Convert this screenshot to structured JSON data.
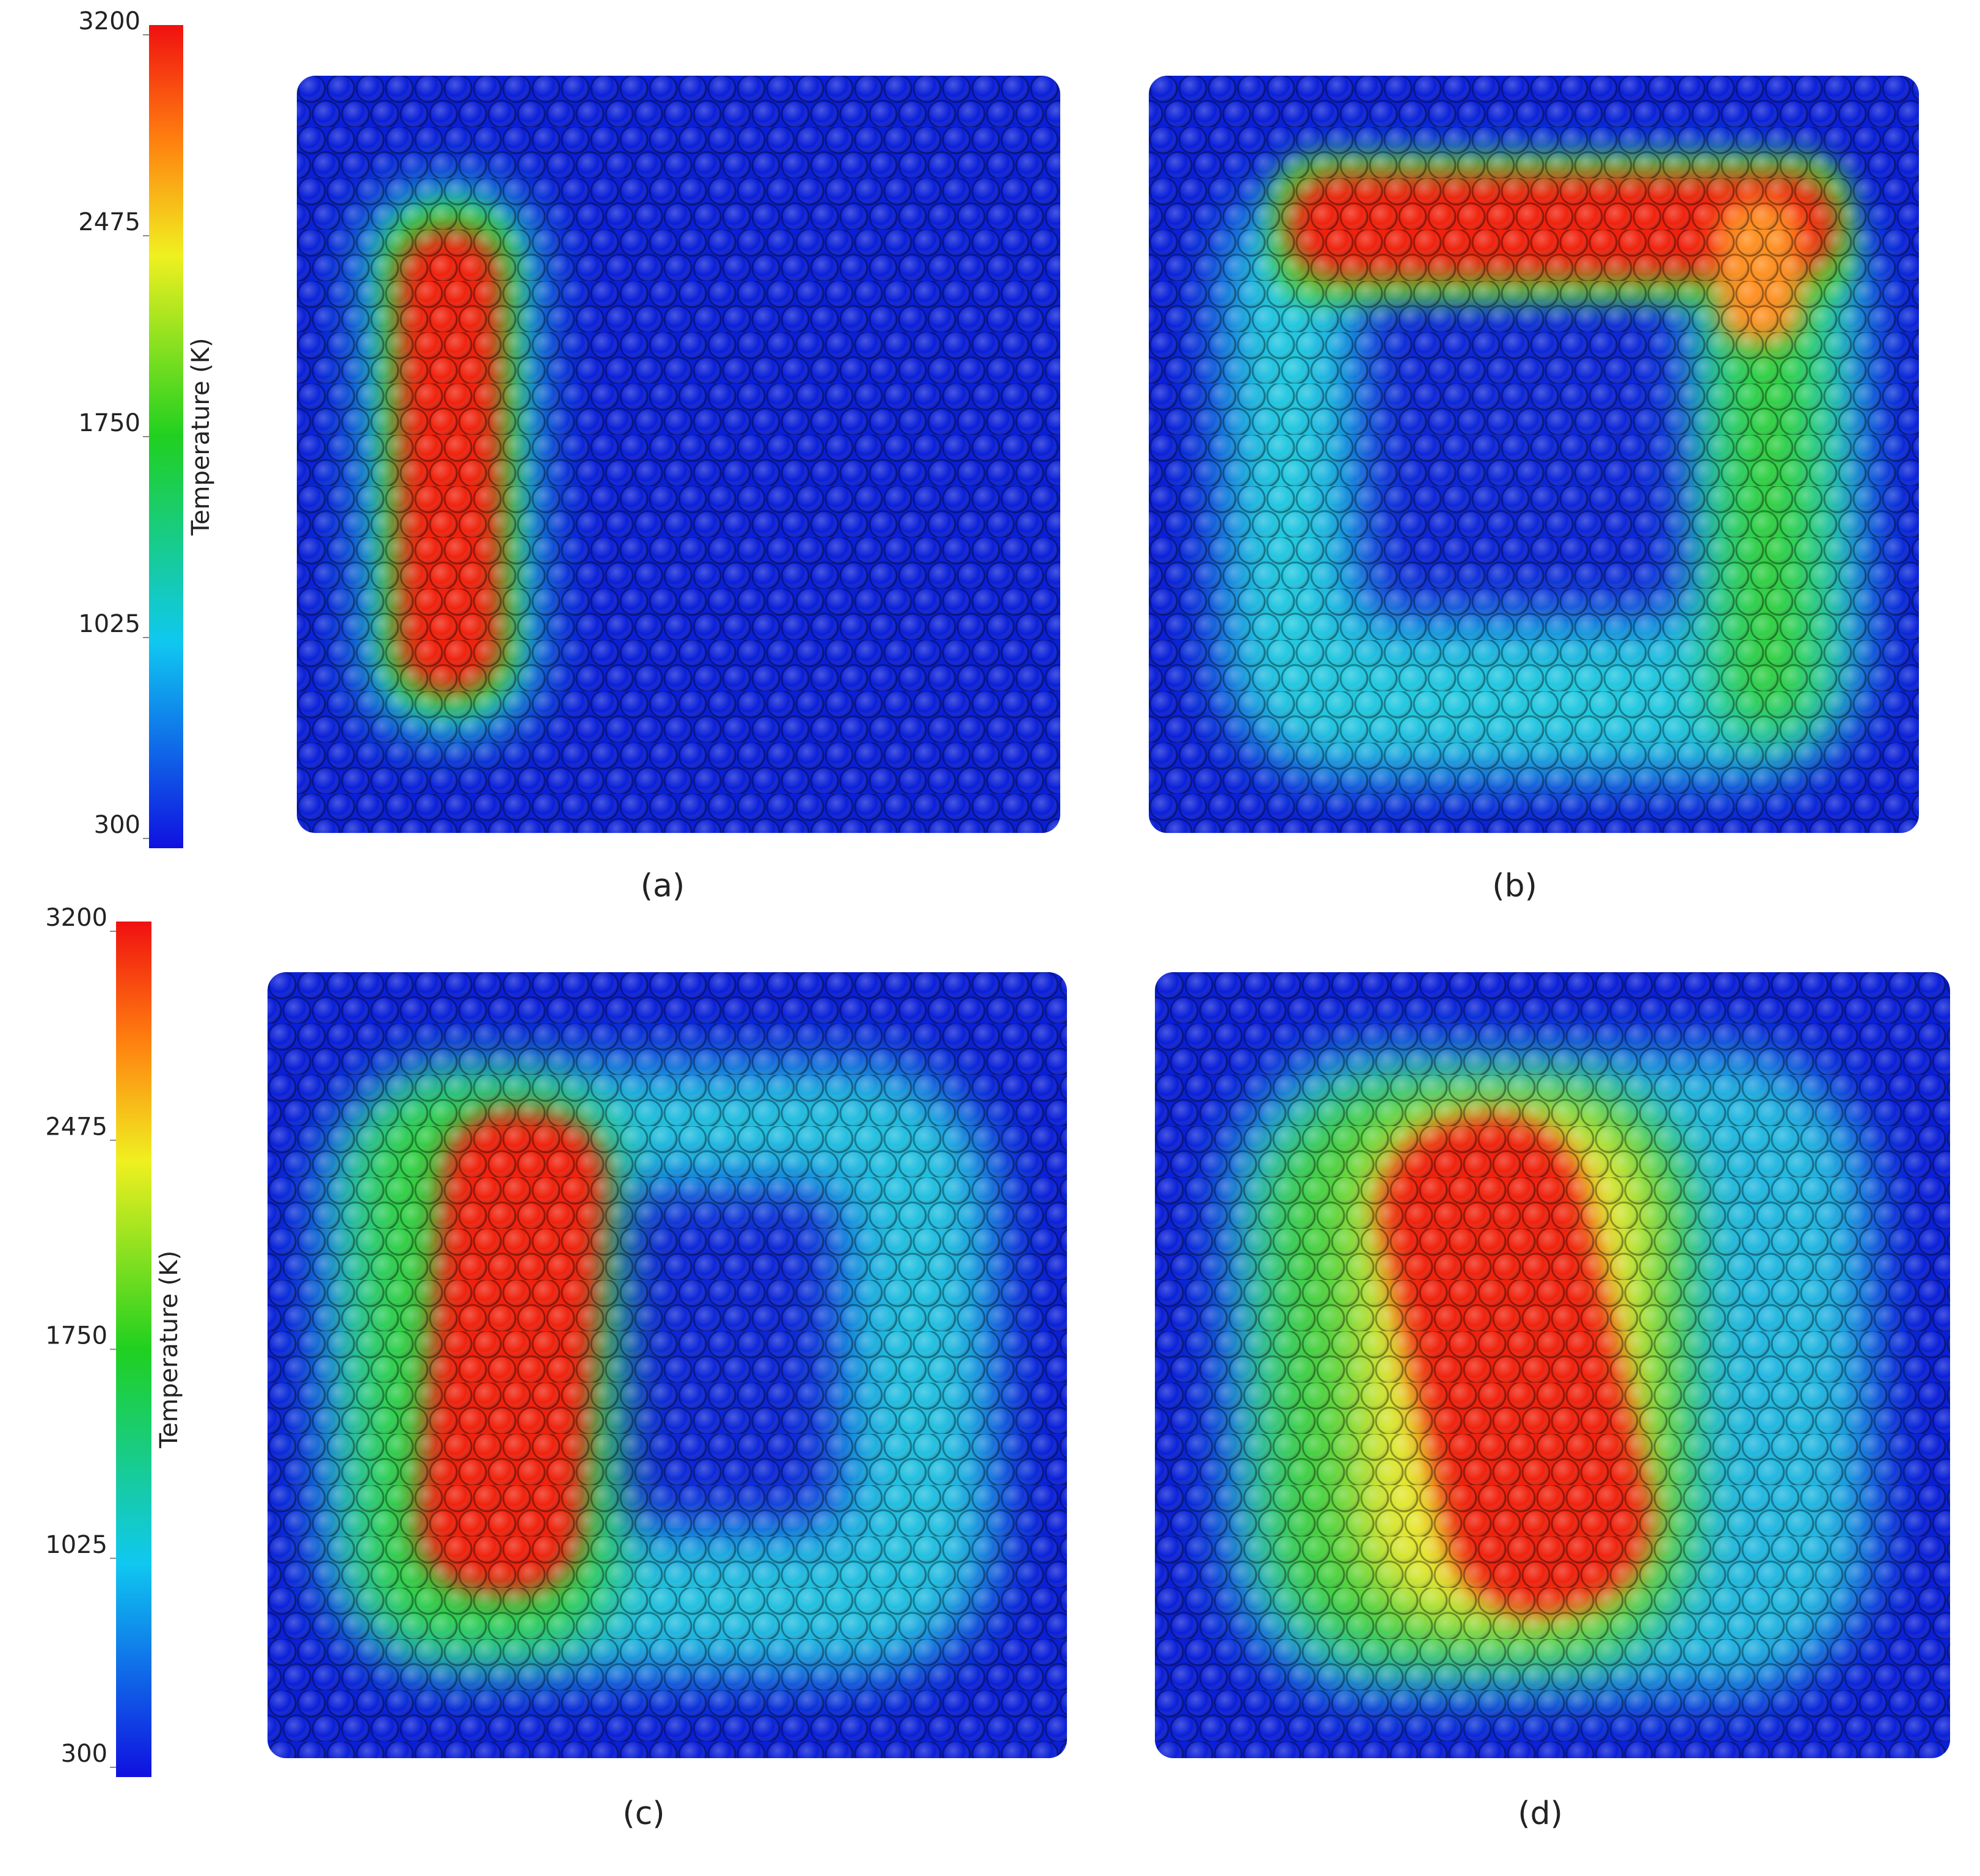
{
  "colorbars": [
    {
      "label": "Temperature (K)",
      "range": [
        300,
        3200
      ],
      "ticks": [
        300,
        1025,
        1750,
        2475,
        3200
      ]
    },
    {
      "label": "Temperature (K)",
      "range": [
        300,
        3200
      ],
      "ticks": [
        300,
        1025,
        1750,
        2475,
        3200
      ]
    }
  ],
  "panels": [
    {
      "caption": "(a)"
    },
    {
      "caption": "(b)"
    },
    {
      "caption": "(c)"
    },
    {
      "caption": "(d)"
    }
  ]
}
